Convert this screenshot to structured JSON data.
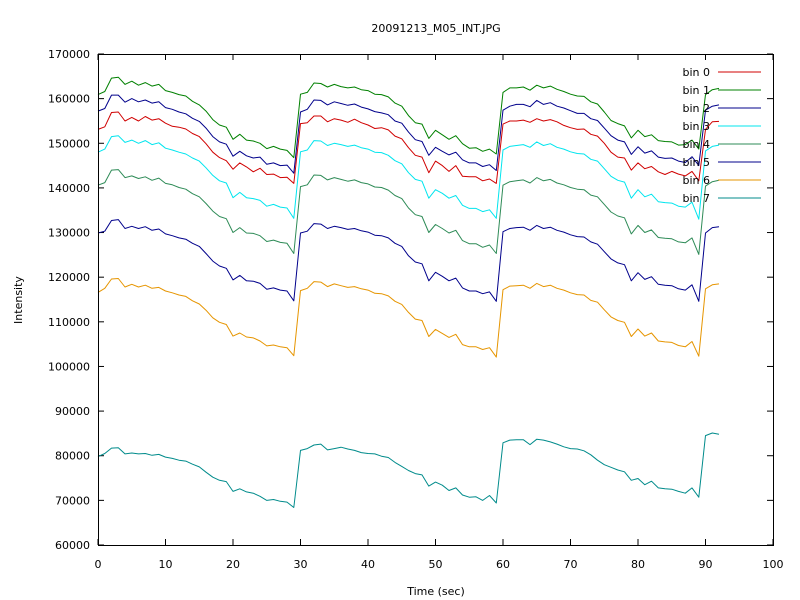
{
  "chart_data": {
    "type": "line",
    "title": "20091213_M05_INT.JPG",
    "xlabel": "Time (sec)",
    "ylabel": "Intensity",
    "xlim": [
      0,
      100
    ],
    "ylim": [
      60000,
      170000
    ],
    "x_ticks": [
      0,
      10,
      20,
      30,
      40,
      50,
      60,
      70,
      80,
      90,
      100
    ],
    "x_tick_labels": [
      "0",
      "10",
      "20",
      "30",
      "40",
      "50",
      "60",
      "70",
      "80",
      "90",
      "100"
    ],
    "y_ticks": [
      60000,
      70000,
      80000,
      90000,
      100000,
      110000,
      120000,
      130000,
      140000,
      150000,
      160000,
      170000
    ],
    "y_tick_labels": [
      "60000",
      "70000",
      "80000",
      "90000",
      "100000",
      "110000",
      "120000",
      "130000",
      "140000",
      "150000",
      "160000",
      "170000"
    ],
    "grid": false,
    "legend_position": "top-right",
    "x": [
      0,
      1,
      2,
      3,
      4,
      5,
      6,
      7,
      8,
      9,
      10,
      11,
      12,
      13,
      14,
      15,
      16,
      17,
      18,
      19,
      20,
      21,
      22,
      23,
      24,
      25,
      26,
      27,
      28,
      29,
      30,
      31,
      32,
      33,
      34,
      35,
      36,
      37,
      38,
      39,
      40,
      41,
      42,
      43,
      44,
      45,
      46,
      47,
      48,
      49,
      50,
      51,
      52,
      53,
      54,
      55,
      56,
      57,
      58,
      59,
      60,
      61,
      62,
      63,
      64,
      65,
      66,
      67,
      68,
      69,
      70,
      71,
      72,
      73,
      74,
      75,
      76,
      77,
      78,
      79,
      80,
      81,
      82,
      83,
      84,
      85,
      86,
      87,
      88,
      89,
      90,
      91,
      92
    ],
    "series": [
      {
        "name": "bin 0",
        "color": "#d00000",
        "values": [
          153100,
          153700,
          156900,
          157000,
          155000,
          155800,
          155000,
          156000,
          155200,
          155500,
          154500,
          153800,
          153600,
          153200,
          152200,
          151500,
          149900,
          148000,
          146800,
          146100,
          144200,
          145600,
          144700,
          143600,
          144400,
          143000,
          143100,
          142300,
          142400,
          141000,
          154400,
          154600,
          156100,
          156100,
          154800,
          155500,
          155200,
          154700,
          155400,
          154600,
          154100,
          153300,
          153500,
          153000,
          151600,
          151000,
          149000,
          147300,
          146900,
          143400,
          146000,
          145000,
          143700,
          145000,
          142600,
          142500,
          142500,
          141600,
          142000,
          141000,
          154300,
          155000,
          155000,
          155200,
          154700,
          155500,
          155000,
          155300,
          154800,
          154000,
          153500,
          153100,
          153200,
          152000,
          151600,
          150000,
          148000,
          146900,
          146700,
          144000,
          145600,
          144300,
          144800,
          143600,
          143000,
          143700,
          143100,
          142700,
          143700,
          141600,
          153100,
          154800,
          154900
        ]
      },
      {
        "name": "bin 1",
        "color": "#008000",
        "values": [
          160900,
          161600,
          164600,
          164800,
          163200,
          163900,
          163000,
          163600,
          162800,
          163200,
          161800,
          161400,
          160900,
          160600,
          159400,
          158600,
          157200,
          155300,
          154100,
          153600,
          150900,
          152000,
          150700,
          150500,
          150000,
          148800,
          149300,
          148700,
          148400,
          146800,
          161000,
          161400,
          163500,
          163400,
          162600,
          163200,
          162700,
          162400,
          162600,
          162000,
          161800,
          161000,
          160900,
          160400,
          159000,
          158300,
          156200,
          154600,
          154300,
          151100,
          152900,
          151900,
          150900,
          151700,
          149900,
          148900,
          149000,
          148200,
          148700,
          147600,
          161400,
          162400,
          162400,
          162600,
          161900,
          163000,
          162400,
          162800,
          162100,
          161600,
          161000,
          160600,
          160500,
          159300,
          158800,
          157000,
          155100,
          154400,
          153900,
          151200,
          152900,
          151500,
          151900,
          150600,
          150400,
          150300,
          149600,
          149700,
          150700,
          148700,
          160900,
          162000,
          162300
        ]
      },
      {
        "name": "bin 2",
        "color": "#00008b",
        "values": [
          157200,
          157800,
          160800,
          160800,
          159200,
          160000,
          159300,
          159700,
          159000,
          159300,
          158000,
          157600,
          157000,
          156600,
          155600,
          154900,
          153400,
          151500,
          150300,
          149800,
          147100,
          148200,
          147200,
          146700,
          146900,
          145300,
          145600,
          145000,
          145100,
          143300,
          157000,
          157600,
          159700,
          159600,
          158600,
          159300,
          158900,
          158500,
          158800,
          158100,
          157700,
          157100,
          156800,
          156400,
          155000,
          154500,
          152500,
          150800,
          150400,
          147300,
          149100,
          148200,
          147400,
          148000,
          146300,
          145600,
          145600,
          144800,
          145200,
          143900,
          157400,
          158300,
          158700,
          158700,
          158200,
          159600,
          158700,
          159100,
          158300,
          157900,
          157300,
          156700,
          156700,
          155500,
          155100,
          153400,
          151700,
          150700,
          150300,
          147500,
          149200,
          147800,
          148300,
          146900,
          146600,
          146700,
          146000,
          145700,
          147000,
          145000,
          157400,
          158300,
          158600
        ]
      },
      {
        "name": "bin 3",
        "color": "#00e5ee",
        "values": [
          148000,
          148700,
          151500,
          151700,
          150200,
          150700,
          150000,
          150600,
          149700,
          150100,
          148900,
          148500,
          148000,
          147600,
          146700,
          146000,
          144500,
          142800,
          141600,
          141100,
          137800,
          139000,
          137800,
          137600,
          137200,
          135900,
          136300,
          135700,
          135500,
          133200,
          148100,
          148500,
          150600,
          150500,
          149500,
          150000,
          149700,
          149300,
          149600,
          149000,
          148700,
          148000,
          147900,
          147300,
          146100,
          145400,
          143400,
          141900,
          141500,
          137700,
          139600,
          138800,
          137700,
          138300,
          136100,
          135400,
          135400,
          134700,
          135100,
          133200,
          148500,
          149300,
          149500,
          149700,
          149100,
          150300,
          149500,
          149900,
          149100,
          148700,
          148100,
          147700,
          147600,
          146400,
          146000,
          144300,
          142600,
          141700,
          141300,
          137700,
          139600,
          138000,
          138600,
          136900,
          136700,
          136600,
          135900,
          135700,
          136800,
          133000,
          148300,
          149300,
          149600
        ]
      },
      {
        "name": "bin 4",
        "color": "#2e8b57",
        "values": [
          140600,
          141200,
          144000,
          144100,
          142300,
          142700,
          142100,
          142500,
          141700,
          142200,
          141000,
          140700,
          140100,
          139700,
          138700,
          138000,
          136500,
          134800,
          133600,
          133100,
          130000,
          131100,
          129900,
          129800,
          129300,
          128000,
          128300,
          127800,
          127600,
          125300,
          140300,
          140700,
          142900,
          142800,
          141800,
          142300,
          141900,
          141500,
          141800,
          141200,
          140900,
          140200,
          140100,
          139500,
          138300,
          137600,
          135500,
          134000,
          133600,
          130000,
          131800,
          130900,
          129900,
          130500,
          128200,
          127500,
          127500,
          126700,
          127200,
          125300,
          140600,
          141400,
          141600,
          141800,
          141100,
          142300,
          141600,
          141900,
          141100,
          140700,
          140100,
          139700,
          139600,
          138400,
          138000,
          136300,
          134600,
          133700,
          133300,
          129700,
          131600,
          130000,
          130600,
          128900,
          128700,
          128600,
          127900,
          127700,
          128800,
          125100,
          140400,
          141400,
          141700
        ]
      },
      {
        "name": "bin 5",
        "color": "#00008b",
        "values": [
          129900,
          130300,
          132700,
          132900,
          130900,
          131400,
          130900,
          131300,
          130500,
          130800,
          129700,
          129300,
          128800,
          128500,
          127600,
          126900,
          125300,
          123600,
          122500,
          122000,
          119400,
          120400,
          119200,
          119100,
          118600,
          117300,
          117600,
          117100,
          116900,
          114700,
          129900,
          130300,
          132000,
          131900,
          130900,
          131400,
          131100,
          130700,
          130900,
          130400,
          130100,
          129400,
          129300,
          128800,
          127600,
          126900,
          124800,
          123400,
          123000,
          119200,
          121100,
          120200,
          119200,
          119800,
          117600,
          116900,
          116900,
          116300,
          116700,
          114600,
          130200,
          130900,
          131100,
          131200,
          130500,
          131600,
          130900,
          131200,
          130500,
          130100,
          129500,
          129100,
          129000,
          127900,
          127400,
          125700,
          124100,
          123200,
          122800,
          119200,
          121000,
          119500,
          120100,
          118400,
          118200,
          118100,
          117400,
          117100,
          118300,
          114600,
          129900,
          131100,
          131300
        ]
      },
      {
        "name": "bin 6",
        "color": "#e69500",
        "values": [
          116600,
          117500,
          119600,
          119700,
          117800,
          118400,
          117800,
          118200,
          117500,
          117700,
          116900,
          116500,
          116000,
          115700,
          114700,
          114000,
          112600,
          110900,
          109900,
          109400,
          106800,
          107500,
          106600,
          106400,
          105700,
          104600,
          104800,
          104400,
          104200,
          102400,
          117000,
          117500,
          119000,
          118900,
          117900,
          118500,
          118100,
          117700,
          117900,
          117400,
          117100,
          116400,
          116300,
          115800,
          114600,
          113900,
          112100,
          110600,
          110300,
          106700,
          108300,
          107400,
          106500,
          107200,
          104900,
          104400,
          104400,
          103800,
          104200,
          102100,
          117200,
          118000,
          118100,
          118200,
          117500,
          118600,
          117900,
          118200,
          117500,
          117100,
          116500,
          116100,
          116000,
          114800,
          114400,
          112700,
          111100,
          110300,
          109900,
          106700,
          108400,
          106800,
          107500,
          105700,
          105500,
          105400,
          104700,
          104400,
          105600,
          102300,
          117400,
          118300,
          118500
        ]
      },
      {
        "name": "bin 7",
        "color": "#008b8b",
        "values": [
          79800,
          80500,
          81700,
          81800,
          80400,
          80600,
          80400,
          80500,
          80100,
          80300,
          79700,
          79400,
          79000,
          78800,
          78100,
          77500,
          76300,
          75200,
          74500,
          74200,
          72000,
          72600,
          71900,
          71600,
          70900,
          70000,
          70200,
          69800,
          69600,
          68400,
          81200,
          81600,
          82400,
          82600,
          81300,
          81600,
          81900,
          81500,
          81200,
          80700,
          80500,
          80400,
          79900,
          79600,
          78500,
          77600,
          76700,
          76000,
          75700,
          73200,
          74100,
          73400,
          72200,
          72800,
          71200,
          70700,
          70800,
          70000,
          71100,
          69400,
          82900,
          83500,
          83600,
          83600,
          82500,
          83700,
          83500,
          83100,
          82600,
          82000,
          81600,
          81500,
          81100,
          80200,
          79000,
          78000,
          77400,
          76800,
          76400,
          74500,
          74900,
          73500,
          74300,
          72800,
          72600,
          72500,
          72000,
          71600,
          72800,
          70700,
          84500,
          85100,
          84800
        ]
      }
    ]
  }
}
